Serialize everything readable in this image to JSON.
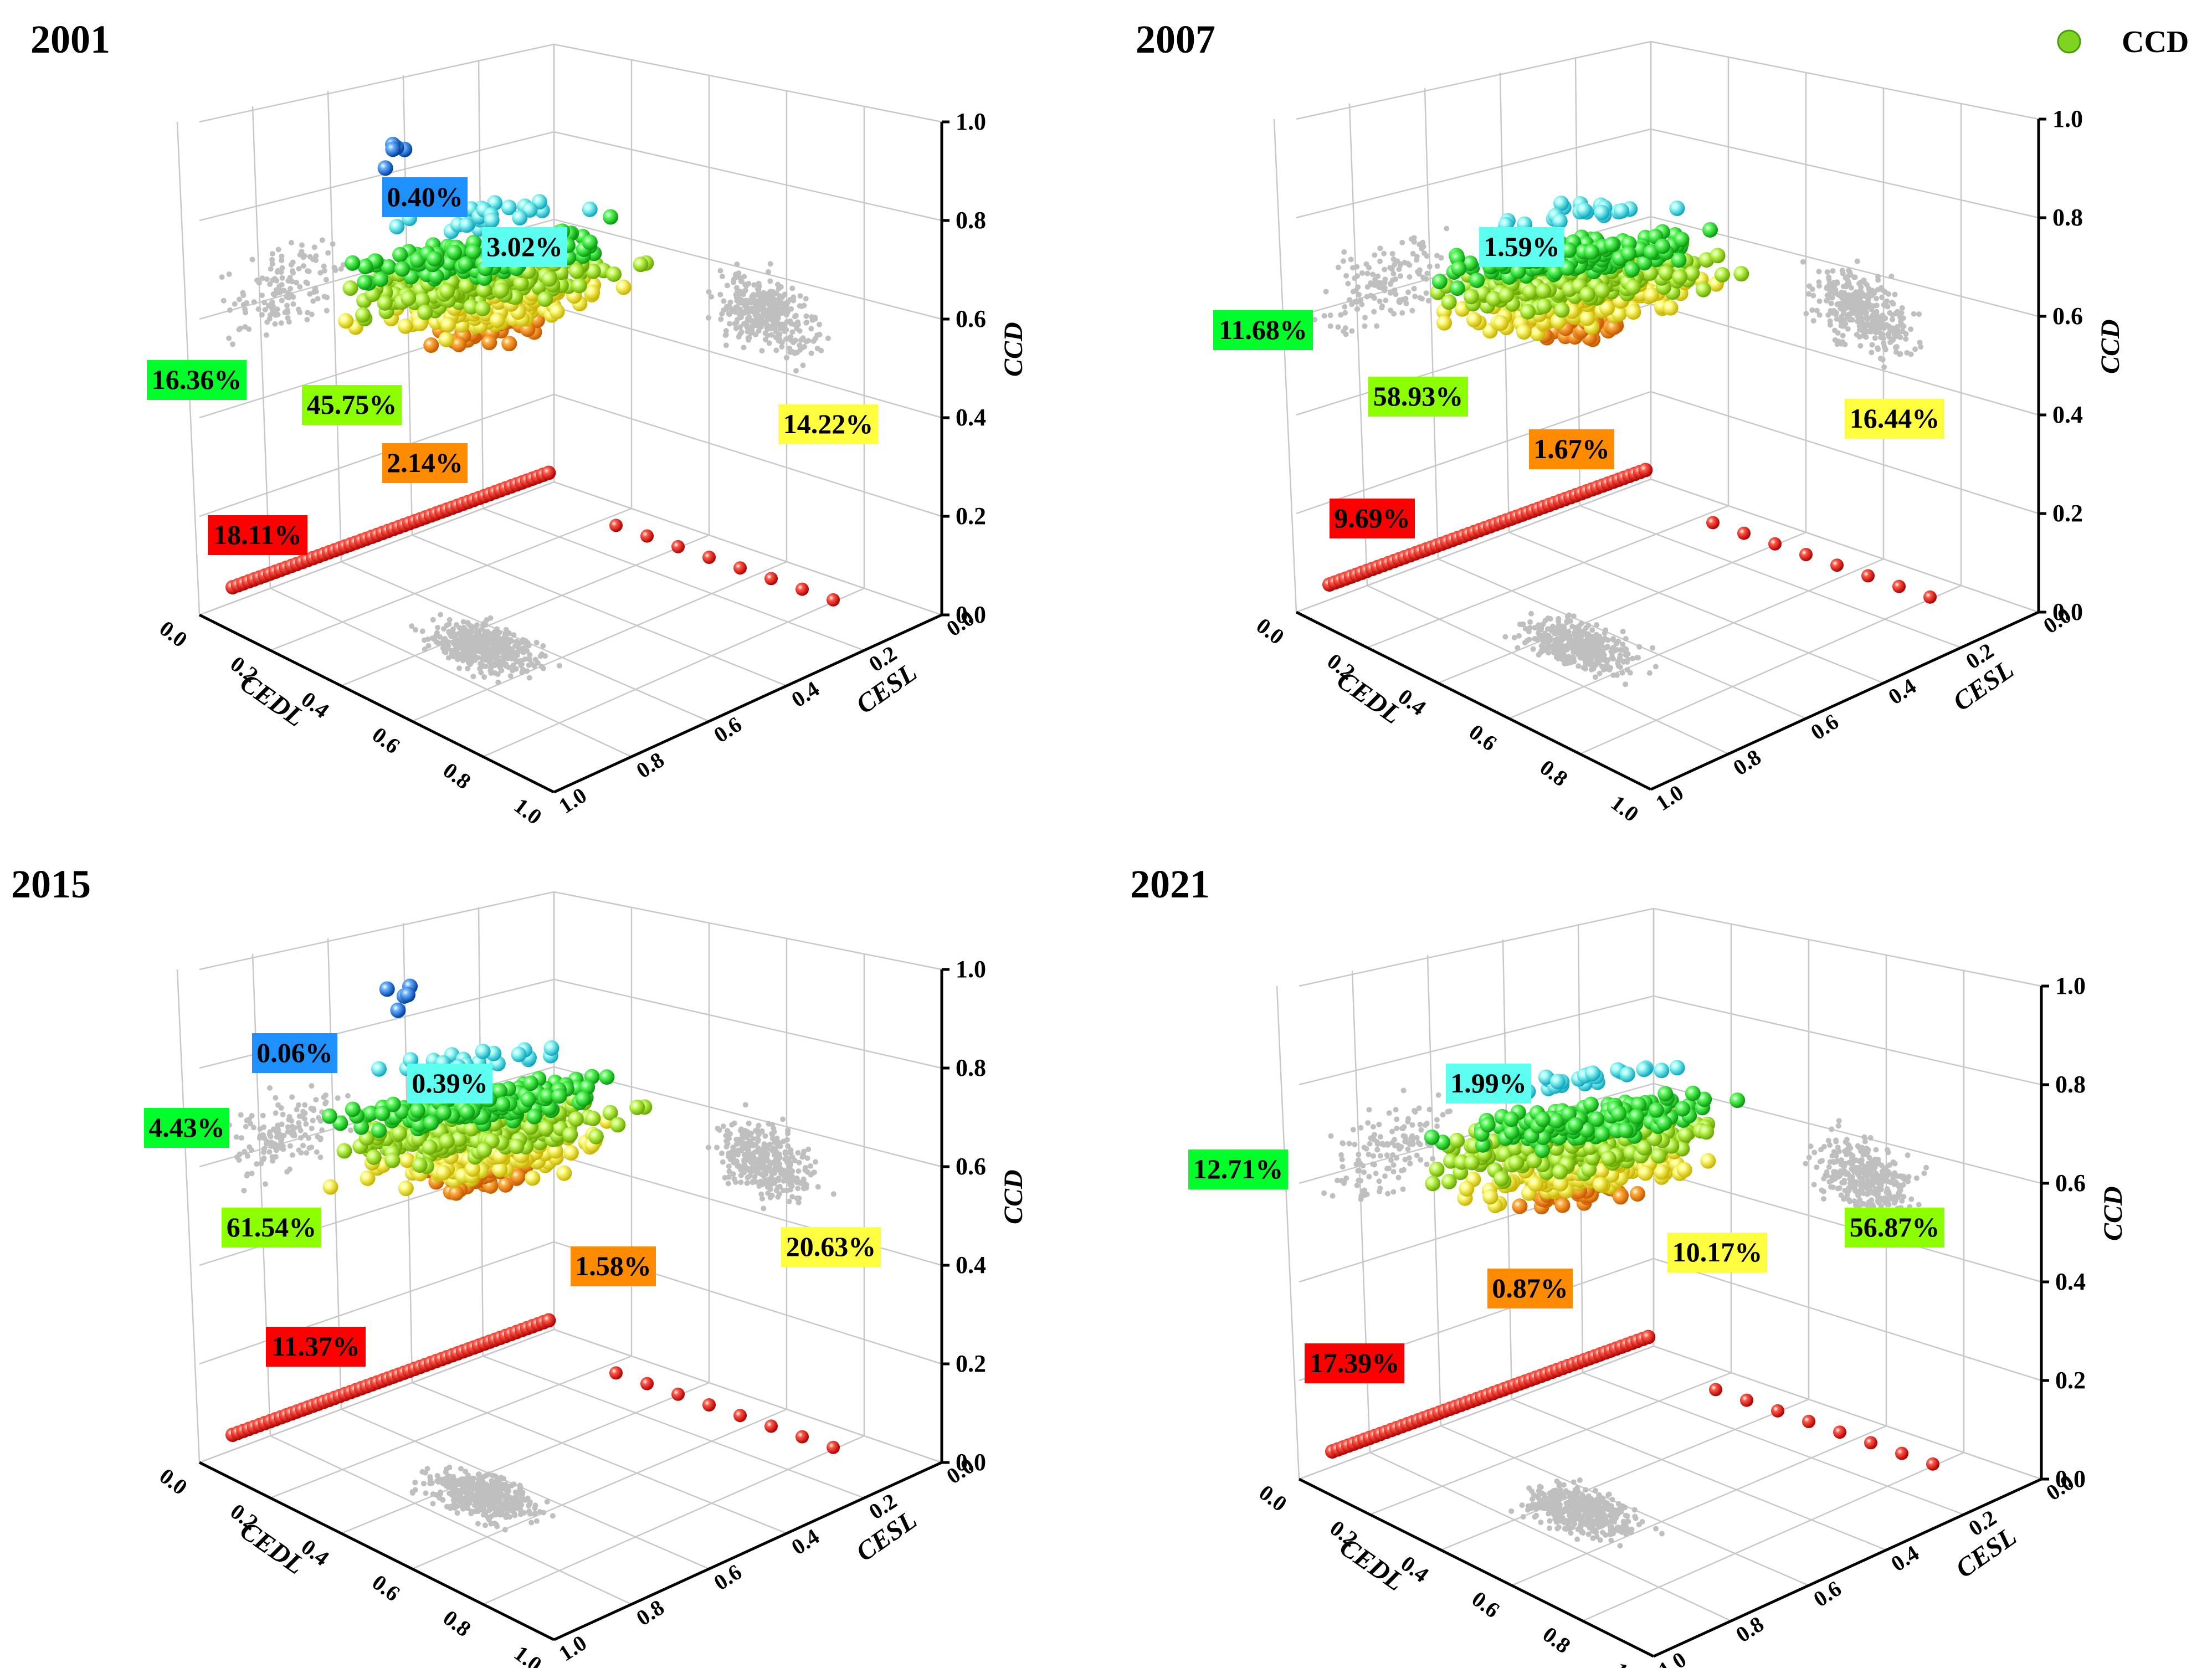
{
  "legend": {
    "label": "CCD",
    "color": "#7fd321"
  },
  "axes": {
    "x_title": "CEDL",
    "y_title": "CESL",
    "z_title": "CCD",
    "x_ticks": [
      "0.0",
      "0.2",
      "0.4",
      "0.6",
      "0.8",
      "1.0"
    ],
    "y_ticks": [
      "0.0",
      "0.2",
      "0.4",
      "0.6",
      "0.8",
      "1.0"
    ],
    "z_ticks": [
      "0.0",
      "0.2",
      "0.4",
      "0.6",
      "0.8",
      "1.0"
    ]
  },
  "colors": {
    "red": "#ff0000",
    "orange": "#ff8c00",
    "yellow": "#ffff40",
    "yellowgreen": "#8cff00",
    "green": "#00ff2a",
    "cyan": "#5dfff0",
    "blue": "#1e90ff",
    "gray_points": "#bfbfbf"
  },
  "chart_data": [
    {
      "type": "scatter",
      "title": "2001",
      "xlabel": "CEDL",
      "ylabel": "CESL",
      "zlabel": "CCD",
      "xlim": [
        0,
        1
      ],
      "ylim": [
        0,
        1
      ],
      "zlim": [
        0,
        1
      ],
      "classes": [
        {
          "name": "red",
          "percent": "18.11%"
        },
        {
          "name": "orange",
          "percent": "2.14%"
        },
        {
          "name": "yellow",
          "percent": "14.22%"
        },
        {
          "name": "yellowgreen",
          "percent": "45.75%"
        },
        {
          "name": "green",
          "percent": "16.36%"
        },
        {
          "name": "cyan",
          "percent": "3.02%"
        },
        {
          "name": "blue",
          "percent": "0.40%"
        }
      ]
    },
    {
      "type": "scatter",
      "title": "2007",
      "xlabel": "CEDL",
      "ylabel": "CESL",
      "zlabel": "CCD",
      "xlim": [
        0,
        1
      ],
      "ylim": [
        0,
        1
      ],
      "zlim": [
        0,
        1
      ],
      "classes": [
        {
          "name": "red",
          "percent": "9.69%"
        },
        {
          "name": "orange",
          "percent": "1.67%"
        },
        {
          "name": "yellow",
          "percent": "16.44%"
        },
        {
          "name": "yellowgreen",
          "percent": "58.93%"
        },
        {
          "name": "green",
          "percent": "11.68%"
        },
        {
          "name": "cyan",
          "percent": "1.59%"
        }
      ]
    },
    {
      "type": "scatter",
      "title": "2015",
      "xlabel": "CEDL",
      "ylabel": "CESL",
      "zlabel": "CCD",
      "xlim": [
        0,
        1
      ],
      "ylim": [
        0,
        1
      ],
      "zlim": [
        0,
        1
      ],
      "classes": [
        {
          "name": "red",
          "percent": "11.37%"
        },
        {
          "name": "orange",
          "percent": "1.58%"
        },
        {
          "name": "yellow",
          "percent": "20.63%"
        },
        {
          "name": "yellowgreen",
          "percent": "61.54%"
        },
        {
          "name": "green",
          "percent": "4.43%"
        },
        {
          "name": "cyan",
          "percent": "0.39%"
        },
        {
          "name": "blue",
          "percent": "0.06%"
        }
      ]
    },
    {
      "type": "scatter",
      "title": "2021",
      "xlabel": "CEDL",
      "ylabel": "CESL",
      "zlabel": "CCD",
      "xlim": [
        0,
        1
      ],
      "ylim": [
        0,
        1
      ],
      "zlim": [
        0,
        1
      ],
      "classes": [
        {
          "name": "red",
          "percent": "17.39%"
        },
        {
          "name": "orange",
          "percent": "0.87%"
        },
        {
          "name": "yellow",
          "percent": "10.17%"
        },
        {
          "name": "yellowgreen",
          "percent": "56.87%"
        },
        {
          "name": "green",
          "percent": "12.71%"
        },
        {
          "name": "cyan",
          "percent": "1.99%"
        }
      ]
    }
  ]
}
